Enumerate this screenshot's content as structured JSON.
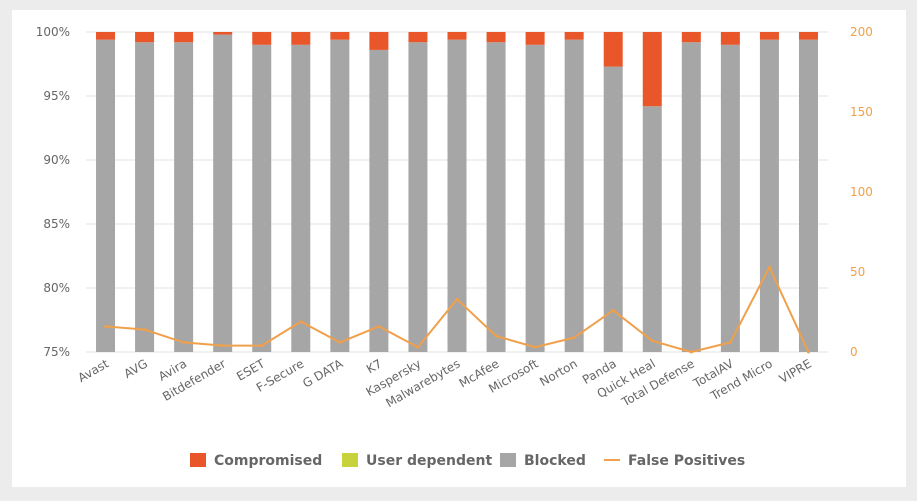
{
  "chart_data": {
    "type": "bar",
    "stacked": true,
    "categories": [
      "Avast",
      "AVG",
      "Avira",
      "Bitdefender",
      "ESET",
      "F-Secure",
      "G DATA",
      "K7",
      "Kaspersky",
      "Malwarebytes",
      "McAfee",
      "Microsoft",
      "Norton",
      "Panda",
      "Quick Heal",
      "Total Defense",
      "TotalAV",
      "Trend Micro",
      "VIPRE"
    ],
    "series": [
      {
        "name": "Compromised",
        "type": "bar",
        "color": "#e8562a",
        "values": [
          0.6,
          0.8,
          0.8,
          0.2,
          1.0,
          1.0,
          0.6,
          1.4,
          0.8,
          0.6,
          0.8,
          1.0,
          0.6,
          2.7,
          5.8,
          0.8,
          1.0,
          0.6,
          0.6
        ]
      },
      {
        "name": "User dependent",
        "type": "bar",
        "color": "#c8d23c",
        "values": [
          0,
          0,
          0,
          0,
          0,
          0,
          0,
          0,
          0,
          0,
          0,
          0,
          0,
          0,
          0,
          0,
          0,
          0,
          0
        ]
      },
      {
        "name": "Blocked",
        "type": "bar",
        "color": "#a6a6a6",
        "values": [
          99.4,
          99.2,
          99.2,
          99.8,
          99.0,
          99.0,
          99.4,
          98.6,
          99.2,
          99.4,
          99.2,
          99.0,
          99.4,
          97.3,
          94.2,
          99.2,
          99.0,
          99.4,
          99.4
        ]
      },
      {
        "name": "False Positives",
        "type": "line",
        "axis": "right",
        "color": "#f0a04a",
        "values": [
          16,
          14,
          6,
          4,
          4,
          19,
          6,
          16,
          3,
          33,
          10,
          3,
          9,
          26,
          7,
          0,
          6,
          53,
          0
        ]
      }
    ],
    "y_left": {
      "min": 75,
      "max": 100,
      "ticks": [
        "75%",
        "80%",
        "85%",
        "90%",
        "95%",
        "100%"
      ]
    },
    "y_right": {
      "min": 0,
      "max": 200,
      "ticks": [
        "0",
        "50",
        "100",
        "150",
        "200"
      ]
    },
    "grid": true,
    "legend_position": "bottom"
  }
}
